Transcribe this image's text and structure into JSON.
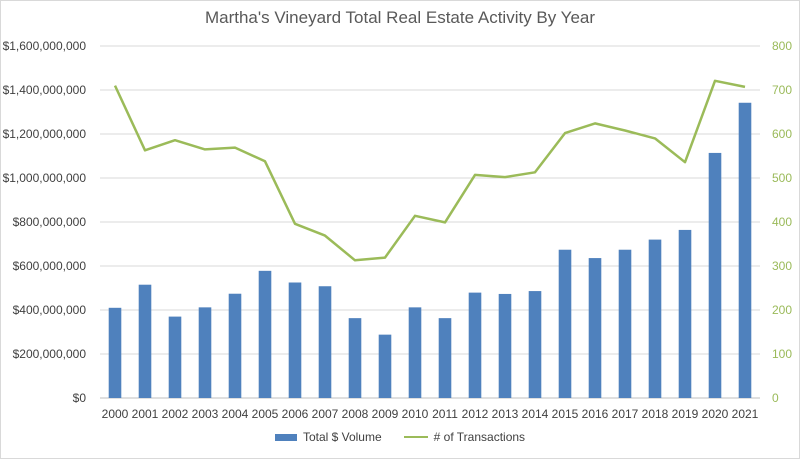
{
  "chart_data": {
    "type": "bar+line",
    "title": "Martha's Vineyard Total Real Estate Activity By Year",
    "categories": [
      "2000",
      "2001",
      "2002",
      "2003",
      "2004",
      "2005",
      "2006",
      "2007",
      "2008",
      "2009",
      "2010",
      "2011",
      "2012",
      "2013",
      "2014",
      "2015",
      "2016",
      "2017",
      "2018",
      "2019",
      "2020",
      "2021"
    ],
    "series": [
      {
        "name": "Total $ Volume",
        "type": "bar",
        "axis": "left",
        "color": "#4f81bd",
        "values": [
          410000000,
          515000000,
          370000000,
          412000000,
          474000000,
          578000000,
          525000000,
          508000000,
          363000000,
          288000000,
          412000000,
          363000000,
          479000000,
          473000000,
          486000000,
          674000000,
          636000000,
          674000000,
          720000000,
          764000000,
          1114000000,
          1342000000
        ]
      },
      {
        "name": "# of Transactions",
        "type": "line",
        "axis": "right",
        "color": "#9bbb59",
        "values": [
          710,
          563,
          586,
          565,
          569,
          538,
          396,
          369,
          313,
          319,
          414,
          399,
          507,
          502,
          513,
          602,
          624,
          608,
          590,
          536,
          721,
          707
        ]
      }
    ],
    "y_left": {
      "min": 0,
      "max": 1600000000,
      "step": 200000000,
      "tick_labels": [
        "$0",
        "$200,000,000",
        "$400,000,000",
        "$600,000,000",
        "$800,000,000",
        "$1,000,000,000",
        "$1,200,000,000",
        "$1,400,000,000",
        "$1,600,000,000"
      ]
    },
    "y_right": {
      "min": 0,
      "max": 800,
      "step": 100,
      "tick_labels": [
        "0",
        "100",
        "200",
        "300",
        "400",
        "500",
        "600",
        "700",
        "800"
      ]
    },
    "grid": true,
    "legend_position": "bottom"
  }
}
